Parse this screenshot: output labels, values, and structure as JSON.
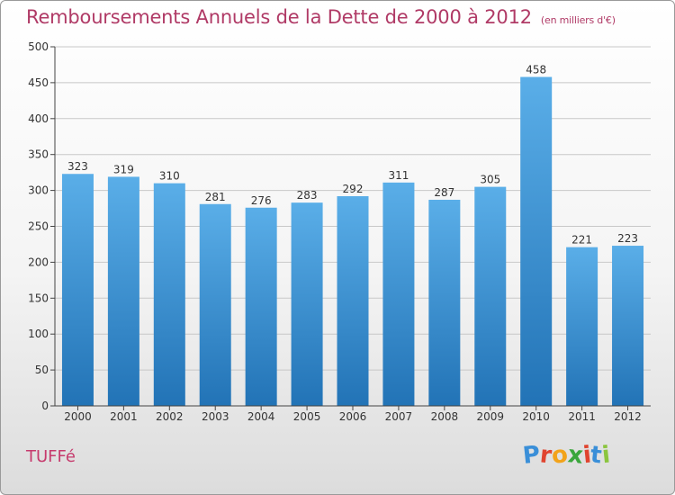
{
  "header": {
    "title": "Remboursements Annuels de la Dette de 2000 à 2012",
    "subtitle": "(en milliers d'€)"
  },
  "footer": {
    "commune": "TUFFé",
    "logo": {
      "letters": [
        "P",
        "r",
        "o",
        "x",
        "i",
        "t",
        "i"
      ],
      "colors": [
        "#3a8fd8",
        "#e0442f",
        "#f2a31b",
        "#3aa63c",
        "#e0442f",
        "#3a8fd8",
        "#8bc53f"
      ]
    }
  },
  "colors": {
    "bar_light": "#5aaee8",
    "bar_dark": "#2273b6",
    "axis": "#444444",
    "grid": "#c8c8c8"
  },
  "chart_data": {
    "type": "bar",
    "categories": [
      "2000",
      "2001",
      "2002",
      "2003",
      "2004",
      "2005",
      "2006",
      "2007",
      "2008",
      "2009",
      "2010",
      "2011",
      "2012"
    ],
    "values": [
      323,
      319,
      310,
      281,
      276,
      283,
      292,
      311,
      287,
      305,
      458,
      221,
      223
    ],
    "ylim": [
      0,
      500
    ],
    "yticks": [
      0,
      50,
      100,
      150,
      200,
      250,
      300,
      350,
      400,
      450,
      500
    ],
    "grid": true,
    "data_labels": true
  }
}
